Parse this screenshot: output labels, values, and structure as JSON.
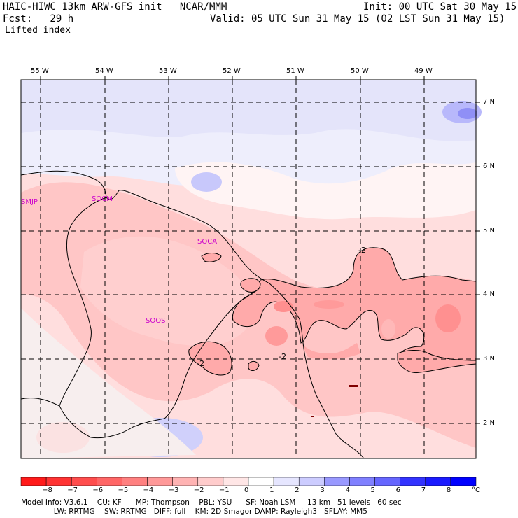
{
  "header": {
    "model_title": "HAIC-HIWC 13km ARW-GFS init   NCAR/MMM",
    "init": "Init: 00 UTC Sat 30 May 15",
    "fcst": "Fcst:   29 h",
    "valid": "Valid: 05 UTC Sun 31 May 15 (02 LST Sun 31 May 15)",
    "field": "Lifted index"
  },
  "map": {
    "lon_labels": [
      "55 W",
      "54 W",
      "53 W",
      "52 W",
      "51 W",
      "50 W",
      "49 W"
    ],
    "lat_labels": [
      "7 N",
      "6 N",
      "5 N",
      "4 N",
      "3 N",
      "2 N"
    ],
    "stations": [
      "SMJP",
      "SOCM",
      "SOCA",
      "SOOS"
    ],
    "contour_labels": [
      "-2",
      "-2",
      "-2"
    ]
  },
  "colorbar": {
    "ticks": [
      "−8",
      "−7",
      "−6",
      "−5",
      "−4",
      "−3",
      "−2",
      "−1",
      "0",
      "1",
      "2",
      "3",
      "4",
      "5",
      "6",
      "7",
      "8"
    ],
    "unit": "°C",
    "colors": [
      "#ff1a1a",
      "#ff3333",
      "#ff4d4d",
      "#ff6666",
      "#ff8080",
      "#ff9999",
      "#ffb3b3",
      "#ffcccc",
      "#ffe6e6",
      "#ffffff",
      "#e6e6ff",
      "#ccccff",
      "#9999ff",
      "#8080ff",
      "#6666ff",
      "#3333ff",
      "#1a1aff",
      "#0000ff"
    ]
  },
  "footer": {
    "line1": "Model Info: V3.6.1    CU: KF      MP: Thompson    PBL: YSU      SF: Noah LSM     13 km   51 levels   60 sec",
    "line2": "              LW: RRTMG    SW: RRTMG   DIFF: full    KM: 2D Smagor DAMP: Rayleigh3   SFLAY: MM5"
  }
}
